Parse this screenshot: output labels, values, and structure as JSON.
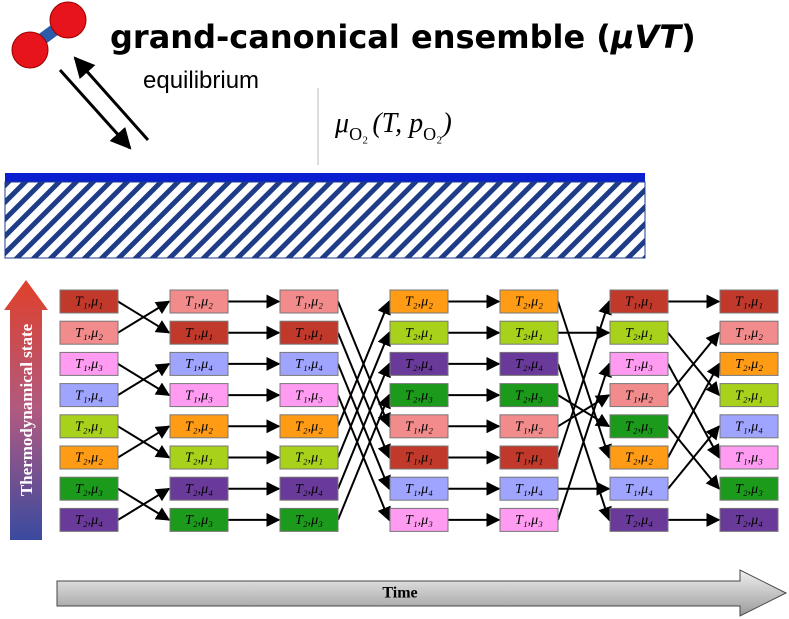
{
  "title": [
    "grand-canonical ensemble (",
    "μVT",
    ")"
  ],
  "equilibrium": "equilibrium",
  "formula": [
    "μ",
    "O₂",
    "(T, p",
    "O₂",
    ")"
  ],
  "state_axis": "Thermodynamical state",
  "time_axis": "Time",
  "state_colors": {
    "T₁,μ₁": "#c0392b",
    "T₁,μ₂": "#f28b8b",
    "T₁,μ₃": "#ff9cf2",
    "T₁,μ₄": "#9fa4ff",
    "T₂,μ₁": "#a8d11c",
    "T₂,μ₂": "#ff9b14",
    "T₂,μ₃": "#1c9a1c",
    "T₂,μ₄": "#6a3a9a"
  },
  "columns": [
    [
      "T₁,μ₁",
      "T₁,μ₂",
      "T₁,μ₃",
      "T₁,μ₄",
      "T₂,μ₁",
      "T₂,μ₂",
      "T₂,μ₃",
      "T₂,μ₄"
    ],
    [
      "T₁,μ₂",
      "T₁,μ₁",
      "T₁,μ₄",
      "T₁,μ₃",
      "T₂,μ₂",
      "T₂,μ₁",
      "T₂,μ₄",
      "T₂,μ₃"
    ],
    [
      "T₁,μ₂",
      "T₁,μ₁",
      "T₁,μ₄",
      "T₁,μ₃",
      "T₂,μ₂",
      "T₂,μ₁",
      "T₂,μ₄",
      "T₂,μ₃"
    ],
    [
      "T₂,μ₂",
      "T₂,μ₁",
      "T₂,μ₄",
      "T₂,μ₃",
      "T₁,μ₂",
      "T₁,μ₁",
      "T₁,μ₄",
      "T₁,μ₃"
    ],
    [
      "T₂,μ₂",
      "T₂,μ₁",
      "T₂,μ₄",
      "T₂,μ₃",
      "T₁,μ₂",
      "T₁,μ₁",
      "T₁,μ₄",
      "T₁,μ₃"
    ],
    [
      "T₁,μ₁",
      "T₂,μ₁",
      "T₁,μ₃",
      "T₁,μ₂",
      "T₂,μ₃",
      "T₂,μ₂",
      "T₁,μ₄",
      "T₂,μ₄"
    ],
    [
      "T₁,μ₁",
      "T₁,μ₂",
      "T₂,μ₂",
      "T₂,μ₁",
      "T₁,μ₄",
      "T₁,μ₃",
      "T₂,μ₃",
      "T₂,μ₄"
    ]
  ]
}
